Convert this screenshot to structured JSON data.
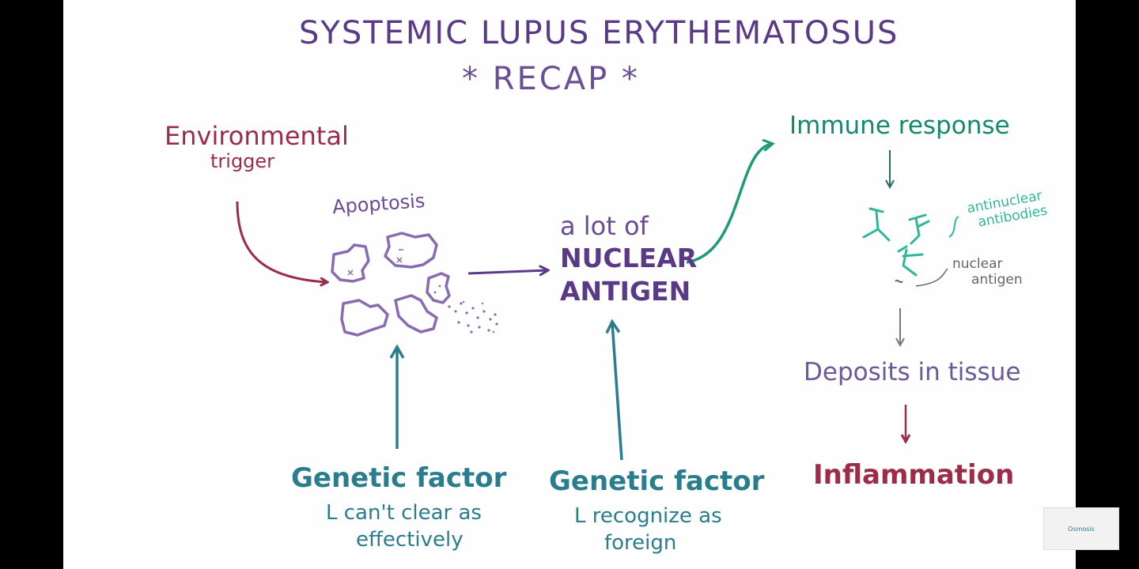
{
  "title": "SYSTEMIC LUPUS ERYTHEMATOSUS",
  "subtitle": "* RECAP *",
  "environmental_trigger": [
    "Environmental",
    "trigger"
  ],
  "apoptosis": "Apoptosis",
  "nuclear_antigen": {
    "line1": "a lot of",
    "line2": "NUCLEAR",
    "line3": "ANTIGEN"
  },
  "genetic_factor_1": {
    "heading": "Genetic factor",
    "line1": "L can't clear as",
    "line2": "effectively"
  },
  "genetic_factor_2": {
    "heading": "Genetic factor",
    "line1": "L recognize as",
    "line2": "foreign"
  },
  "immune_response": "Immune response",
  "antinuclear_antibodies": [
    "antinuclear",
    "antibodies"
  ],
  "nuclear_antigen_label": [
    "nuclear",
    "antigen"
  ],
  "deposits": "Deposits in tissue",
  "inflammation": "Inflammation",
  "logo_text": "Osmosis",
  "colors": {
    "red": "#9b2d4a",
    "purple": "#6a4b95",
    "green": "#1e9a78",
    "teal": "#2a7d8d"
  }
}
